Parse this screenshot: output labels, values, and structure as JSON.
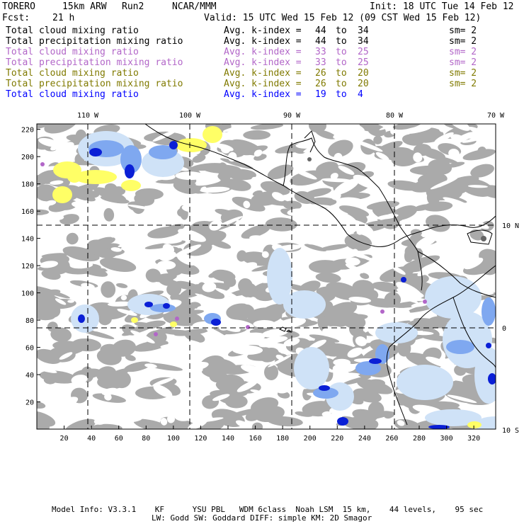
{
  "header": {
    "model": "TORERO",
    "resolution": "15km ARW",
    "run": "Run2",
    "org": "NCAR/MMM",
    "init": "Init: 18 UTC Tue 14 Feb 12",
    "fcst_label": "Fcst:",
    "fcst_value": "21 h",
    "valid": "Valid: 15 UTC Wed 15 Feb 12 (09 CST Wed 15 Feb 12)"
  },
  "legend": [
    {
      "field": "Total cloud mixing ratio",
      "kindex": "Avg. k-index =",
      "from": "44",
      "to_word": "to",
      "to": "34",
      "sm": "sm= 2",
      "color": "#000000"
    },
    {
      "field": "Total precipitation mixing ratio",
      "kindex": "Avg. k-index =",
      "from": "44",
      "to_word": "to",
      "to": "34",
      "sm": "sm= 2",
      "color": "#000000"
    },
    {
      "field": "Total cloud mixing ratio",
      "kindex": "Avg. k-index =",
      "from": "33",
      "to_word": "to",
      "to": "25",
      "sm": "sm= 2",
      "color": "#b266c8"
    },
    {
      "field": "Total precipitation mixing ratio",
      "kindex": "Avg. k-index =",
      "from": "33",
      "to_word": "to",
      "to": "25",
      "sm": "sm= 2",
      "color": "#b266c8"
    },
    {
      "field": "Total cloud mixing ratio",
      "kindex": "Avg. k-index =",
      "from": "26",
      "to_word": "to",
      "to": "20",
      "sm": "sm= 2",
      "color": "#807a00"
    },
    {
      "field": "Total precipitation mixing ratio",
      "kindex": "Avg. k-index =",
      "from": "26",
      "to_word": "to",
      "to": "20",
      "sm": "sm= 2",
      "color": "#807a00"
    },
    {
      "field": "Total cloud mixing ratio",
      "kindex": "Avg. k-index =",
      "from": "19",
      "to_word": "to",
      "to": "4",
      "sm": "",
      "color": "#0000ff"
    }
  ],
  "map": {
    "lon_labels": [
      "110 W",
      "100 W",
      "90 W",
      "80 W",
      "70 W"
    ],
    "lat_labels": [
      "10 N",
      "0",
      "10 S"
    ],
    "x_ticks": [
      "20",
      "40",
      "60",
      "80",
      "100",
      "120",
      "140",
      "160",
      "180",
      "200",
      "220",
      "240",
      "260",
      "280",
      "300",
      "320"
    ],
    "y_ticks": [
      "220",
      "200",
      "180",
      "160",
      "140",
      "120",
      "100",
      "80",
      "60",
      "40",
      "20"
    ],
    "colors": {
      "frame": "#000000",
      "cloud_gray": "#aaaaaa",
      "cloud_dark": "#666666",
      "light_blue": "#cfe2f7",
      "mid_blue": "#7fa8f0",
      "deep_blue": "#0a1fd6",
      "yellow": "#ffff66",
      "purple": "#b266c8"
    }
  },
  "footer": {
    "line1": "Model Info: V3.3.1    KF      YSU PBL   WDM 6class  Noah LSM  15 km,    44 levels,    95 sec",
    "line2": "LW: Godd SW: Goddard DIFF: simple KM: 2D Smagor"
  }
}
